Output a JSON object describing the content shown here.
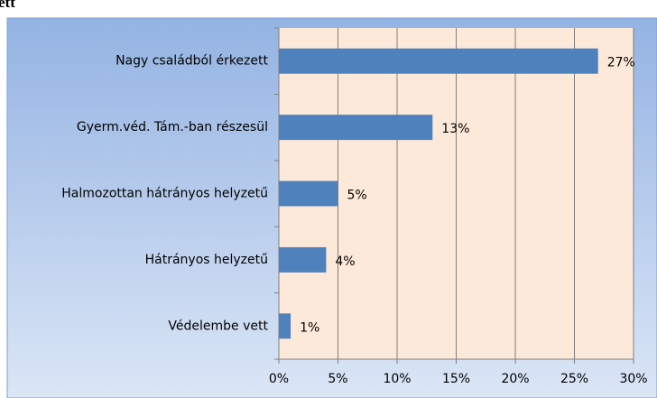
{
  "header_fragment": "ett",
  "chart_data": {
    "type": "hbar",
    "categories": [
      "Nagy családból érkezett",
      "Gyerm.véd. Tám.-ban részesül",
      "Halmozottan hátrányos helyzetű",
      "Hátrányos helyzetű",
      "Védelembe vett"
    ],
    "values": [
      27,
      13,
      5,
      4,
      1
    ],
    "value_labels": [
      "27%",
      "13%",
      "5%",
      "4%",
      "1%"
    ],
    "color": "#4f81bd",
    "xlim": [
      0,
      30
    ],
    "xticks": [
      {
        "value": 0,
        "label": "0%"
      },
      {
        "value": 5,
        "label": "5%"
      },
      {
        "value": 10,
        "label": "10%"
      },
      {
        "value": 15,
        "label": "15%"
      },
      {
        "value": 20,
        "label": "20%"
      },
      {
        "value": 25,
        "label": "25%"
      },
      {
        "value": 30,
        "label": "30%"
      }
    ],
    "grid": true
  }
}
